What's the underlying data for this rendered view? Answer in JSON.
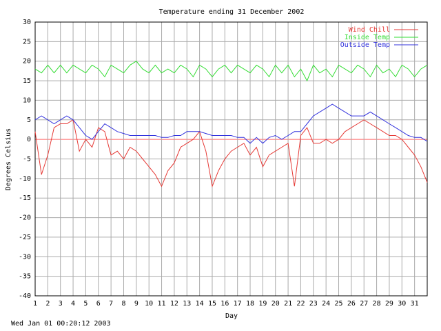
{
  "footer_timestamp": "Wed Jan 01 00:20:12 2003",
  "chart_data": {
    "type": "line",
    "title": "Temperature ending 31 December 2002",
    "xlabel": "Day",
    "ylabel": "Degrees Celsius",
    "xlim": [
      1,
      32
    ],
    "ylim": [
      -40,
      30
    ],
    "x_ticks": [
      "1",
      "2",
      "3",
      "4",
      "5",
      "6",
      "7",
      "8",
      "9",
      "10",
      "11",
      "12",
      "13",
      "14",
      "15",
      "16",
      "17",
      "18",
      "19",
      "20",
      "21",
      "22",
      "23",
      "24",
      "25",
      "26",
      "27",
      "28",
      "29",
      "30",
      "31"
    ],
    "y_ticks": [
      "30",
      "25",
      "20",
      "15",
      "10",
      "5",
      "0",
      "-5",
      "-10",
      "-15",
      "-20",
      "-25",
      "-30",
      "-35",
      "-40"
    ],
    "grid": true,
    "legend_position": "top-right",
    "x": [
      1,
      1.5,
      2,
      2.5,
      3,
      3.5,
      4,
      4.5,
      5,
      5.5,
      6,
      6.5,
      7,
      7.5,
      8,
      8.5,
      9,
      9.5,
      10,
      10.5,
      11,
      11.5,
      12,
      12.5,
      13,
      13.5,
      14,
      14.5,
      15,
      15.5,
      16,
      16.5,
      17,
      17.5,
      18,
      18.5,
      19,
      19.5,
      20,
      20.5,
      21,
      21.5,
      22,
      22.5,
      23,
      23.5,
      24,
      24.5,
      25,
      25.5,
      26,
      26.5,
      27,
      27.5,
      28,
      28.5,
      29,
      29.5,
      30,
      30.5,
      31,
      31.5,
      32
    ],
    "series": [
      {
        "name": "Wind Chill",
        "color": "#e53935",
        "values": [
          2,
          -9,
          -4,
          3,
          4,
          4,
          5,
          -3,
          0,
          -2,
          3,
          2,
          -4,
          -3,
          -5,
          -2,
          -3,
          -5,
          -7,
          -9,
          -12,
          -8,
          -6,
          -2,
          -1,
          0,
          2,
          -3,
          -12,
          -8,
          -5,
          -3,
          -2,
          -1,
          -4,
          -2,
          -7,
          -4,
          -3,
          -2,
          -1,
          -12,
          1,
          3,
          -1,
          -1,
          0,
          -1,
          0,
          2,
          3,
          4,
          5,
          4,
          3,
          2,
          1,
          1,
          0,
          -2,
          -4,
          -7,
          -11
        ]
      },
      {
        "name": "Inside Temp",
        "color": "#33dd33",
        "values": [
          18,
          17,
          19,
          17,
          19,
          17,
          19,
          18,
          17,
          19,
          18,
          16,
          19,
          18,
          17,
          19,
          20,
          18,
          17,
          19,
          17,
          18,
          17,
          19,
          18,
          16,
          19,
          18,
          16,
          18,
          19,
          17,
          19,
          18,
          17,
          19,
          18,
          16,
          19,
          17,
          19,
          16,
          18,
          15,
          19,
          17,
          18,
          16,
          19,
          18,
          17,
          19,
          18,
          16,
          19,
          17,
          18,
          16,
          19,
          18,
          16,
          18,
          19
        ]
      },
      {
        "name": "Outside Temp",
        "color": "#3333dd",
        "values": [
          5,
          6,
          5,
          4,
          5,
          6,
          5,
          3,
          1,
          0,
          2,
          4,
          3,
          2,
          1.5,
          1,
          1,
          1,
          1,
          1,
          0.5,
          0.5,
          1,
          1,
          2,
          2,
          2,
          1.5,
          1,
          1,
          1,
          1,
          0.5,
          0.5,
          -1,
          0.5,
          -1,
          0.5,
          1,
          0,
          1,
          2,
          2,
          4,
          6,
          7,
          8,
          9,
          8,
          7,
          6,
          6,
          6,
          7,
          6,
          5,
          4,
          3,
          2,
          1,
          0.5,
          0.5,
          -0.5
        ]
      }
    ]
  }
}
